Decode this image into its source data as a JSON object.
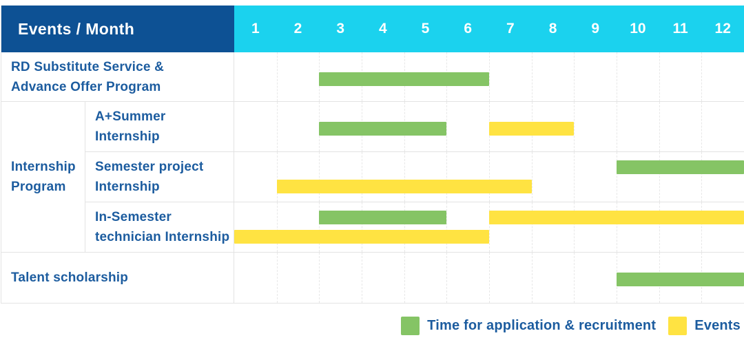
{
  "table": {
    "header": {
      "title": "Events / Month",
      "months": [
        "1",
        "2",
        "3",
        "4",
        "5",
        "6",
        "7",
        "8",
        "9",
        "10",
        "11",
        "12"
      ]
    },
    "row_labels": {
      "rd": "RD Substitute Service &\nAdvance Offer Program",
      "group_internship": "Internship\nProgram",
      "a_summer": "A+Summer\nInternship",
      "semester_project": "Semester project\nInternship",
      "in_semester": "In-Semester\ntechnician Internship",
      "talent": "Talent scholarship"
    }
  },
  "legend": {
    "items": [
      {
        "label": "Time for application & recruitment",
        "color": "green"
      },
      {
        "label": "Events",
        "color": "yellow"
      }
    ]
  },
  "colors": {
    "header_bg": "#0d5194",
    "months_bg": "#1bd2ee",
    "label_text": "#1c5c9f",
    "green": "#85c465",
    "yellow": "#ffe342",
    "border": "#e3e3e3",
    "grid_line": "#e7e7e7"
  },
  "chart_data": {
    "type": "gantt",
    "title": "Events / Month",
    "months": [
      1,
      2,
      3,
      4,
      5,
      6,
      7,
      8,
      9,
      10,
      11,
      12
    ],
    "rows": [
      {
        "group": null,
        "label": "RD Substitute Service & Advance Offer Program",
        "bars": [
          {
            "series": "Time for application & recruitment",
            "color": "green",
            "start_month": 3,
            "end_month": 6,
            "lane": "center"
          }
        ]
      },
      {
        "group": "Internship Program",
        "label": "A+Summer Internship",
        "bars": [
          {
            "series": "Time for application & recruitment",
            "color": "green",
            "start_month": 3,
            "end_month": 5,
            "lane": "center"
          },
          {
            "series": "Events",
            "color": "yellow",
            "start_month": 7,
            "end_month": 8,
            "lane": "center"
          }
        ]
      },
      {
        "group": "Internship Program",
        "label": "Semester project Internship",
        "bars": [
          {
            "series": "Time for application & recruitment",
            "color": "green",
            "start_month": 10,
            "end_month": 12,
            "lane": "upper"
          },
          {
            "series": "Events",
            "color": "yellow",
            "start_month": 2,
            "end_month": 7,
            "lane": "lower"
          }
        ]
      },
      {
        "group": "Internship Program",
        "label": "In-Semester technician Internship",
        "bars": [
          {
            "series": "Time for application & recruitment",
            "color": "green",
            "start_month": 3,
            "end_month": 5,
            "lane": "upper"
          },
          {
            "series": "Events",
            "color": "yellow",
            "start_month": 7,
            "end_month": 12,
            "lane": "upper"
          },
          {
            "series": "Events",
            "color": "yellow",
            "start_month": 1,
            "end_month": 6,
            "lane": "lower"
          }
        ]
      },
      {
        "group": null,
        "label": "Talent scholarship",
        "bars": [
          {
            "series": "Time for application & recruitment",
            "color": "green",
            "start_month": 10,
            "end_month": 12,
            "lane": "center"
          }
        ]
      }
    ],
    "legend": [
      {
        "color": "green",
        "label": "Time for application & recruitment"
      },
      {
        "color": "yellow",
        "label": "Events"
      }
    ]
  }
}
